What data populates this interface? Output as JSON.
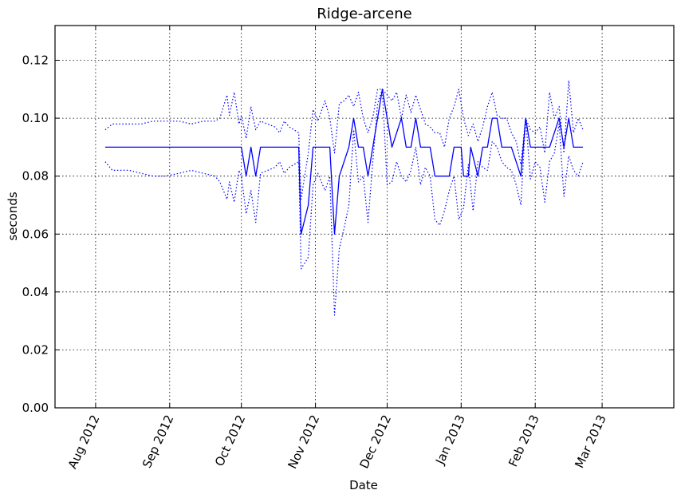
{
  "chart_data": {
    "type": "line",
    "title": "Ridge-arcene",
    "xlabel": "Date",
    "ylabel": "seconds",
    "x_axis": "date",
    "xlim": [
      "2012-07-15",
      "2013-03-31"
    ],
    "ylim": [
      0,
      0.132
    ],
    "grid": true,
    "x_ticks": [
      {
        "date": "2012-08-01",
        "label": "Aug 2012"
      },
      {
        "date": "2012-09-01",
        "label": "Sep 2012"
      },
      {
        "date": "2012-10-01",
        "label": "Oct 2012"
      },
      {
        "date": "2012-11-01",
        "label": "Nov 2012"
      },
      {
        "date": "2012-12-01",
        "label": "Dec 2012"
      },
      {
        "date": "2013-01-01",
        "label": "Jan 2013"
      },
      {
        "date": "2013-02-01",
        "label": "Feb 2013"
      },
      {
        "date": "2013-03-01",
        "label": "Mar 2013"
      }
    ],
    "y_ticks": [
      {
        "value": 0.0,
        "label": "0.00"
      },
      {
        "value": 0.02,
        "label": "0.02"
      },
      {
        "value": 0.04,
        "label": "0.04"
      },
      {
        "value": 0.06,
        "label": "0.06"
      },
      {
        "value": 0.08,
        "label": "0.08"
      },
      {
        "value": 0.1,
        "label": "0.10"
      },
      {
        "value": 0.12,
        "label": "0.12"
      }
    ],
    "colors": {
      "series": "#0000ff"
    },
    "series": [
      {
        "style": "solid",
        "points": [
          [
            "2012-08-05",
            0.09
          ],
          [
            "2012-10-01",
            0.09
          ],
          [
            "2012-10-03",
            0.08
          ],
          [
            "2012-10-05",
            0.09
          ],
          [
            "2012-10-07",
            0.08
          ],
          [
            "2012-10-09",
            0.09
          ],
          [
            "2012-10-25",
            0.09
          ],
          [
            "2012-10-26",
            0.06
          ],
          [
            "2012-10-29",
            0.07
          ],
          [
            "2012-10-31",
            0.09
          ],
          [
            "2012-11-07",
            0.09
          ],
          [
            "2012-11-09",
            0.06
          ],
          [
            "2012-11-11",
            0.08
          ],
          [
            "2012-11-15",
            0.09
          ],
          [
            "2012-11-17",
            0.1
          ],
          [
            "2012-11-19",
            0.09
          ],
          [
            "2012-11-21",
            0.09
          ],
          [
            "2012-11-23",
            0.08
          ],
          [
            "2012-11-29",
            0.11
          ],
          [
            "2012-12-03",
            0.09
          ],
          [
            "2012-12-07",
            0.1
          ],
          [
            "2012-12-09",
            0.09
          ],
          [
            "2012-12-11",
            0.09
          ],
          [
            "2012-12-13",
            0.1
          ],
          [
            "2012-12-15",
            0.09
          ],
          [
            "2012-12-19",
            0.09
          ],
          [
            "2012-12-21",
            0.08
          ],
          [
            "2012-12-27",
            0.08
          ],
          [
            "2012-12-29",
            0.09
          ],
          [
            "2013-01-01",
            0.09
          ],
          [
            "2013-01-02",
            0.08
          ],
          [
            "2013-01-04",
            0.08
          ],
          [
            "2013-01-05",
            0.09
          ],
          [
            "2013-01-08",
            0.08
          ],
          [
            "2013-01-10",
            0.09
          ],
          [
            "2013-01-12",
            0.09
          ],
          [
            "2013-01-14",
            0.1
          ],
          [
            "2013-01-16",
            0.1
          ],
          [
            "2013-01-18",
            0.09
          ],
          [
            "2013-01-22",
            0.09
          ],
          [
            "2013-01-26",
            0.08
          ],
          [
            "2013-01-28",
            0.1
          ],
          [
            "2013-01-30",
            0.09
          ],
          [
            "2013-02-07",
            0.09
          ],
          [
            "2013-02-11",
            0.1
          ],
          [
            "2013-02-13",
            0.09
          ],
          [
            "2013-02-15",
            0.1
          ],
          [
            "2013-02-17",
            0.09
          ],
          [
            "2013-02-21",
            0.09
          ]
        ]
      },
      {
        "style": "dotted",
        "points": [
          [
            "2012-08-05",
            0.096
          ],
          [
            "2012-08-08",
            0.098
          ],
          [
            "2012-08-15",
            0.098
          ],
          [
            "2012-08-20",
            0.098
          ],
          [
            "2012-08-25",
            0.099
          ],
          [
            "2012-08-30",
            0.099
          ],
          [
            "2012-09-05",
            0.099
          ],
          [
            "2012-09-10",
            0.098
          ],
          [
            "2012-09-15",
            0.099
          ],
          [
            "2012-09-20",
            0.099
          ],
          [
            "2012-09-22",
            0.1
          ],
          [
            "2012-09-25",
            0.108
          ],
          [
            "2012-09-26",
            0.101
          ],
          [
            "2012-09-28",
            0.109
          ],
          [
            "2012-09-30",
            0.098
          ],
          [
            "2012-10-01",
            0.101
          ],
          [
            "2012-10-03",
            0.093
          ],
          [
            "2012-10-05",
            0.104
          ],
          [
            "2012-10-07",
            0.096
          ],
          [
            "2012-10-09",
            0.099
          ],
          [
            "2012-10-12",
            0.098
          ],
          [
            "2012-10-15",
            0.097
          ],
          [
            "2012-10-17",
            0.095
          ],
          [
            "2012-10-19",
            0.099
          ],
          [
            "2012-10-21",
            0.097
          ],
          [
            "2012-10-25",
            0.095
          ],
          [
            "2012-10-26",
            0.072
          ],
          [
            "2012-10-29",
            0.088
          ],
          [
            "2012-10-31",
            0.103
          ],
          [
            "2012-11-02",
            0.099
          ],
          [
            "2012-11-05",
            0.106
          ],
          [
            "2012-11-07",
            0.1
          ],
          [
            "2012-11-09",
            0.088
          ],
          [
            "2012-11-11",
            0.105
          ],
          [
            "2012-11-13",
            0.106
          ],
          [
            "2012-11-15",
            0.108
          ],
          [
            "2012-11-17",
            0.104
          ],
          [
            "2012-11-19",
            0.109
          ],
          [
            "2012-11-21",
            0.1
          ],
          [
            "2012-11-23",
            0.095
          ],
          [
            "2012-11-25",
            0.1
          ],
          [
            "2012-11-27",
            0.11
          ],
          [
            "2012-11-29",
            0.11
          ],
          [
            "2012-12-01",
            0.108
          ],
          [
            "2012-12-03",
            0.106
          ],
          [
            "2012-12-05",
            0.109
          ],
          [
            "2012-12-07",
            0.1
          ],
          [
            "2012-12-09",
            0.108
          ],
          [
            "2012-12-11",
            0.102
          ],
          [
            "2012-12-13",
            0.108
          ],
          [
            "2012-12-15",
            0.103
          ],
          [
            "2012-12-17",
            0.098
          ],
          [
            "2012-12-19",
            0.097
          ],
          [
            "2012-12-21",
            0.095
          ],
          [
            "2012-12-23",
            0.095
          ],
          [
            "2012-12-25",
            0.09
          ],
          [
            "2012-12-27",
            0.1
          ],
          [
            "2012-12-29",
            0.104
          ],
          [
            "2012-12-31",
            0.11
          ],
          [
            "2013-01-02",
            0.1
          ],
          [
            "2013-01-04",
            0.094
          ],
          [
            "2013-01-06",
            0.098
          ],
          [
            "2013-01-08",
            0.092
          ],
          [
            "2013-01-10",
            0.097
          ],
          [
            "2013-01-12",
            0.104
          ],
          [
            "2013-01-14",
            0.109
          ],
          [
            "2013-01-16",
            0.101
          ],
          [
            "2013-01-18",
            0.1
          ],
          [
            "2013-01-20",
            0.1
          ],
          [
            "2013-01-22",
            0.095
          ],
          [
            "2013-01-24",
            0.092
          ],
          [
            "2013-01-26",
            0.084
          ],
          [
            "2013-01-28",
            0.1
          ],
          [
            "2013-01-30",
            0.096
          ],
          [
            "2013-02-01",
            0.095
          ],
          [
            "2013-02-03",
            0.097
          ],
          [
            "2013-02-05",
            0.088
          ],
          [
            "2013-02-07",
            0.109
          ],
          [
            "2013-02-09",
            0.1
          ],
          [
            "2013-02-11",
            0.104
          ],
          [
            "2013-02-13",
            0.088
          ],
          [
            "2013-02-15",
            0.113
          ],
          [
            "2013-02-17",
            0.095
          ],
          [
            "2013-02-19",
            0.1
          ],
          [
            "2013-02-21",
            0.096
          ]
        ]
      },
      {
        "style": "dotted",
        "points": [
          [
            "2012-08-05",
            0.085
          ],
          [
            "2012-08-08",
            0.082
          ],
          [
            "2012-08-15",
            0.082
          ],
          [
            "2012-08-20",
            0.081
          ],
          [
            "2012-08-25",
            0.08
          ],
          [
            "2012-08-30",
            0.08
          ],
          [
            "2012-09-05",
            0.081
          ],
          [
            "2012-09-10",
            0.082
          ],
          [
            "2012-09-15",
            0.081
          ],
          [
            "2012-09-20",
            0.08
          ],
          [
            "2012-09-22",
            0.078
          ],
          [
            "2012-09-25",
            0.072
          ],
          [
            "2012-09-26",
            0.078
          ],
          [
            "2012-09-28",
            0.071
          ],
          [
            "2012-09-30",
            0.082
          ],
          [
            "2012-10-01",
            0.08
          ],
          [
            "2012-10-03",
            0.067
          ],
          [
            "2012-10-05",
            0.075
          ],
          [
            "2012-10-07",
            0.064
          ],
          [
            "2012-10-09",
            0.081
          ],
          [
            "2012-10-12",
            0.082
          ],
          [
            "2012-10-15",
            0.083
          ],
          [
            "2012-10-17",
            0.085
          ],
          [
            "2012-10-19",
            0.081
          ],
          [
            "2012-10-21",
            0.083
          ],
          [
            "2012-10-25",
            0.085
          ],
          [
            "2012-10-26",
            0.048
          ],
          [
            "2012-10-29",
            0.052
          ],
          [
            "2012-10-31",
            0.077
          ],
          [
            "2012-11-02",
            0.081
          ],
          [
            "2012-11-05",
            0.075
          ],
          [
            "2012-11-07",
            0.08
          ],
          [
            "2012-11-09",
            0.032
          ],
          [
            "2012-11-11",
            0.055
          ],
          [
            "2012-11-13",
            0.062
          ],
          [
            "2012-11-15",
            0.07
          ],
          [
            "2012-11-17",
            0.096
          ],
          [
            "2012-11-19",
            0.078
          ],
          [
            "2012-11-21",
            0.08
          ],
          [
            "2012-11-23",
            0.064
          ],
          [
            "2012-11-25",
            0.085
          ],
          [
            "2012-11-27",
            0.105
          ],
          [
            "2012-11-29",
            0.11
          ],
          [
            "2012-12-01",
            0.077
          ],
          [
            "2012-12-03",
            0.078
          ],
          [
            "2012-12-05",
            0.085
          ],
          [
            "2012-12-07",
            0.08
          ],
          [
            "2012-12-09",
            0.078
          ],
          [
            "2012-12-11",
            0.082
          ],
          [
            "2012-12-13",
            0.09
          ],
          [
            "2012-12-15",
            0.077
          ],
          [
            "2012-12-17",
            0.083
          ],
          [
            "2012-12-19",
            0.08
          ],
          [
            "2012-12-21",
            0.065
          ],
          [
            "2012-12-23",
            0.063
          ],
          [
            "2012-12-25",
            0.068
          ],
          [
            "2012-12-27",
            0.075
          ],
          [
            "2012-12-29",
            0.08
          ],
          [
            "2012-12-31",
            0.065
          ],
          [
            "2013-01-02",
            0.069
          ],
          [
            "2013-01-04",
            0.084
          ],
          [
            "2013-01-06",
            0.068
          ],
          [
            "2013-01-08",
            0.085
          ],
          [
            "2013-01-10",
            0.083
          ],
          [
            "2013-01-12",
            0.082
          ],
          [
            "2013-01-14",
            0.092
          ],
          [
            "2013-01-16",
            0.09
          ],
          [
            "2013-01-18",
            0.085
          ],
          [
            "2013-01-20",
            0.083
          ],
          [
            "2013-01-22",
            0.082
          ],
          [
            "2013-01-24",
            0.077
          ],
          [
            "2013-01-26",
            0.07
          ],
          [
            "2013-01-28",
            0.1
          ],
          [
            "2013-01-30",
            0.079
          ],
          [
            "2013-02-01",
            0.085
          ],
          [
            "2013-02-03",
            0.083
          ],
          [
            "2013-02-05",
            0.071
          ],
          [
            "2013-02-07",
            0.085
          ],
          [
            "2013-02-09",
            0.088
          ],
          [
            "2013-02-11",
            0.098
          ],
          [
            "2013-02-13",
            0.073
          ],
          [
            "2013-02-15",
            0.087
          ],
          [
            "2013-02-17",
            0.082
          ],
          [
            "2013-02-19",
            0.08
          ],
          [
            "2013-02-21",
            0.085
          ]
        ]
      }
    ]
  }
}
